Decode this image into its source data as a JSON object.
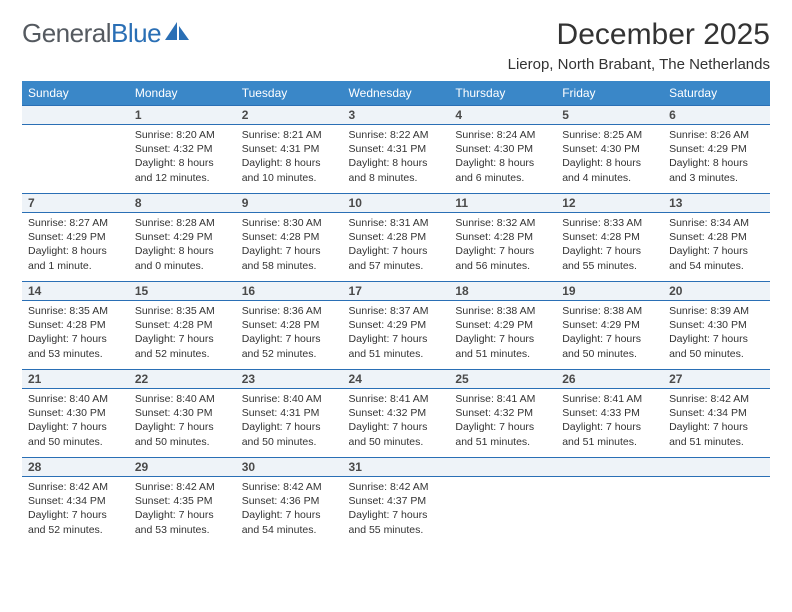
{
  "brand": {
    "part1": "General",
    "part2": "Blue"
  },
  "title": "December 2025",
  "location": "Lierop, North Brabant, The Netherlands",
  "colors": {
    "header_bg": "#3a87c8",
    "header_text": "#ffffff",
    "daynum_bg": "#eef3f8",
    "daynum_border": "#2a6fb5",
    "text": "#333333",
    "logo_gray": "#555a60",
    "logo_blue": "#2a6fb5"
  },
  "typography": {
    "title_fontsize": 30,
    "location_fontsize": 15,
    "weekday_fontsize": 12,
    "daynum_fontsize": 12,
    "body_fontsize": 10.5
  },
  "weekdays": [
    "Sunday",
    "Monday",
    "Tuesday",
    "Wednesday",
    "Thursday",
    "Friday",
    "Saturday"
  ],
  "weeks": [
    [
      {
        "num": "",
        "sunrise": "",
        "sunset": "",
        "daylight": ""
      },
      {
        "num": "1",
        "sunrise": "Sunrise: 8:20 AM",
        "sunset": "Sunset: 4:32 PM",
        "daylight": "Daylight: 8 hours and 12 minutes."
      },
      {
        "num": "2",
        "sunrise": "Sunrise: 8:21 AM",
        "sunset": "Sunset: 4:31 PM",
        "daylight": "Daylight: 8 hours and 10 minutes."
      },
      {
        "num": "3",
        "sunrise": "Sunrise: 8:22 AM",
        "sunset": "Sunset: 4:31 PM",
        "daylight": "Daylight: 8 hours and 8 minutes."
      },
      {
        "num": "4",
        "sunrise": "Sunrise: 8:24 AM",
        "sunset": "Sunset: 4:30 PM",
        "daylight": "Daylight: 8 hours and 6 minutes."
      },
      {
        "num": "5",
        "sunrise": "Sunrise: 8:25 AM",
        "sunset": "Sunset: 4:30 PM",
        "daylight": "Daylight: 8 hours and 4 minutes."
      },
      {
        "num": "6",
        "sunrise": "Sunrise: 8:26 AM",
        "sunset": "Sunset: 4:29 PM",
        "daylight": "Daylight: 8 hours and 3 minutes."
      }
    ],
    [
      {
        "num": "7",
        "sunrise": "Sunrise: 8:27 AM",
        "sunset": "Sunset: 4:29 PM",
        "daylight": "Daylight: 8 hours and 1 minute."
      },
      {
        "num": "8",
        "sunrise": "Sunrise: 8:28 AM",
        "sunset": "Sunset: 4:29 PM",
        "daylight": "Daylight: 8 hours and 0 minutes."
      },
      {
        "num": "9",
        "sunrise": "Sunrise: 8:30 AM",
        "sunset": "Sunset: 4:28 PM",
        "daylight": "Daylight: 7 hours and 58 minutes."
      },
      {
        "num": "10",
        "sunrise": "Sunrise: 8:31 AM",
        "sunset": "Sunset: 4:28 PM",
        "daylight": "Daylight: 7 hours and 57 minutes."
      },
      {
        "num": "11",
        "sunrise": "Sunrise: 8:32 AM",
        "sunset": "Sunset: 4:28 PM",
        "daylight": "Daylight: 7 hours and 56 minutes."
      },
      {
        "num": "12",
        "sunrise": "Sunrise: 8:33 AM",
        "sunset": "Sunset: 4:28 PM",
        "daylight": "Daylight: 7 hours and 55 minutes."
      },
      {
        "num": "13",
        "sunrise": "Sunrise: 8:34 AM",
        "sunset": "Sunset: 4:28 PM",
        "daylight": "Daylight: 7 hours and 54 minutes."
      }
    ],
    [
      {
        "num": "14",
        "sunrise": "Sunrise: 8:35 AM",
        "sunset": "Sunset: 4:28 PM",
        "daylight": "Daylight: 7 hours and 53 minutes."
      },
      {
        "num": "15",
        "sunrise": "Sunrise: 8:35 AM",
        "sunset": "Sunset: 4:28 PM",
        "daylight": "Daylight: 7 hours and 52 minutes."
      },
      {
        "num": "16",
        "sunrise": "Sunrise: 8:36 AM",
        "sunset": "Sunset: 4:28 PM",
        "daylight": "Daylight: 7 hours and 52 minutes."
      },
      {
        "num": "17",
        "sunrise": "Sunrise: 8:37 AM",
        "sunset": "Sunset: 4:29 PM",
        "daylight": "Daylight: 7 hours and 51 minutes."
      },
      {
        "num": "18",
        "sunrise": "Sunrise: 8:38 AM",
        "sunset": "Sunset: 4:29 PM",
        "daylight": "Daylight: 7 hours and 51 minutes."
      },
      {
        "num": "19",
        "sunrise": "Sunrise: 8:38 AM",
        "sunset": "Sunset: 4:29 PM",
        "daylight": "Daylight: 7 hours and 50 minutes."
      },
      {
        "num": "20",
        "sunrise": "Sunrise: 8:39 AM",
        "sunset": "Sunset: 4:30 PM",
        "daylight": "Daylight: 7 hours and 50 minutes."
      }
    ],
    [
      {
        "num": "21",
        "sunrise": "Sunrise: 8:40 AM",
        "sunset": "Sunset: 4:30 PM",
        "daylight": "Daylight: 7 hours and 50 minutes."
      },
      {
        "num": "22",
        "sunrise": "Sunrise: 8:40 AM",
        "sunset": "Sunset: 4:30 PM",
        "daylight": "Daylight: 7 hours and 50 minutes."
      },
      {
        "num": "23",
        "sunrise": "Sunrise: 8:40 AM",
        "sunset": "Sunset: 4:31 PM",
        "daylight": "Daylight: 7 hours and 50 minutes."
      },
      {
        "num": "24",
        "sunrise": "Sunrise: 8:41 AM",
        "sunset": "Sunset: 4:32 PM",
        "daylight": "Daylight: 7 hours and 50 minutes."
      },
      {
        "num": "25",
        "sunrise": "Sunrise: 8:41 AM",
        "sunset": "Sunset: 4:32 PM",
        "daylight": "Daylight: 7 hours and 51 minutes."
      },
      {
        "num": "26",
        "sunrise": "Sunrise: 8:41 AM",
        "sunset": "Sunset: 4:33 PM",
        "daylight": "Daylight: 7 hours and 51 minutes."
      },
      {
        "num": "27",
        "sunrise": "Sunrise: 8:42 AM",
        "sunset": "Sunset: 4:34 PM",
        "daylight": "Daylight: 7 hours and 51 minutes."
      }
    ],
    [
      {
        "num": "28",
        "sunrise": "Sunrise: 8:42 AM",
        "sunset": "Sunset: 4:34 PM",
        "daylight": "Daylight: 7 hours and 52 minutes."
      },
      {
        "num": "29",
        "sunrise": "Sunrise: 8:42 AM",
        "sunset": "Sunset: 4:35 PM",
        "daylight": "Daylight: 7 hours and 53 minutes."
      },
      {
        "num": "30",
        "sunrise": "Sunrise: 8:42 AM",
        "sunset": "Sunset: 4:36 PM",
        "daylight": "Daylight: 7 hours and 54 minutes."
      },
      {
        "num": "31",
        "sunrise": "Sunrise: 8:42 AM",
        "sunset": "Sunset: 4:37 PM",
        "daylight": "Daylight: 7 hours and 55 minutes."
      },
      {
        "num": "",
        "sunrise": "",
        "sunset": "",
        "daylight": ""
      },
      {
        "num": "",
        "sunrise": "",
        "sunset": "",
        "daylight": ""
      },
      {
        "num": "",
        "sunrise": "",
        "sunset": "",
        "daylight": ""
      }
    ]
  ]
}
